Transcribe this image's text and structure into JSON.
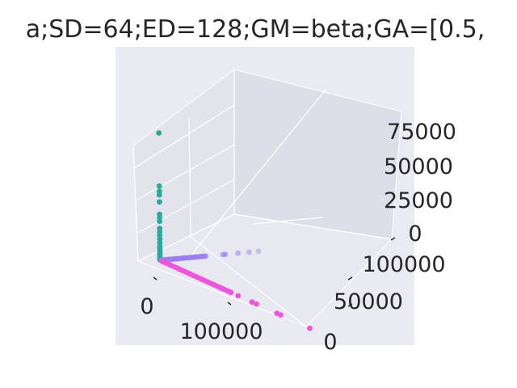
{
  "chart_data": {
    "type": "scatter",
    "title": "a;SD=64;ED=128;GM=beta;GA=[0.5,",
    "xlabel": "",
    "ylabel": "",
    "zlabel": "",
    "grid": true,
    "projection": "3d",
    "x_ticks": [
      "0",
      "100000"
    ],
    "y_ticks": [
      "0",
      "50000",
      "100000"
    ],
    "z_ticks": [
      "0",
      "25000",
      "50000",
      "75000"
    ],
    "xlim": [
      -20000,
      220000
    ],
    "ylim": [
      -10000,
      130000
    ],
    "zlim": [
      0,
      85000
    ],
    "series": [
      {
        "color": "#2ca89a",
        "points": [
          [
            0,
            0,
            72000
          ],
          [
            0,
            0,
            42000
          ],
          [
            0,
            0,
            39000
          ],
          [
            0,
            0,
            37000
          ],
          [
            0,
            0,
            33000
          ],
          [
            0,
            0,
            26000
          ],
          [
            0,
            0,
            24000
          ],
          [
            0,
            0,
            22000
          ],
          [
            0,
            0,
            18000
          ],
          [
            0,
            0,
            16000
          ],
          [
            0,
            0,
            14000
          ],
          [
            0,
            0,
            12000
          ],
          [
            0,
            0,
            10000
          ],
          [
            0,
            0,
            8000
          ],
          [
            0,
            0,
            6500
          ],
          [
            0,
            0,
            5000
          ],
          [
            0,
            0,
            4000
          ],
          [
            0,
            0,
            3000
          ],
          [
            0,
            0,
            2000
          ],
          [
            0,
            0,
            1000
          ],
          [
            0,
            0,
            300
          ]
        ]
      },
      {
        "color": "#9b7cec",
        "points": [
          [
            0,
            125000,
            0
          ],
          [
            0,
            113000,
            0
          ],
          [
            0,
            99000,
            0
          ],
          [
            0,
            83000,
            0
          ],
          [
            0,
            80000,
            0
          ],
          [
            0,
            58000,
            0
          ],
          [
            0,
            56000,
            0
          ],
          [
            0,
            54000,
            0
          ],
          [
            0,
            52000,
            0
          ],
          [
            0,
            50000,
            0
          ],
          [
            0,
            47000,
            0
          ],
          [
            0,
            45000,
            0
          ],
          [
            0,
            42000,
            0
          ],
          [
            0,
            40000,
            0
          ],
          [
            0,
            38000,
            0
          ],
          [
            0,
            35000,
            0
          ],
          [
            0,
            32000,
            0
          ],
          [
            0,
            30000,
            0
          ],
          [
            0,
            28000,
            0
          ],
          [
            0,
            25000,
            0
          ],
          [
            0,
            22000,
            0
          ],
          [
            0,
            20000,
            0
          ],
          [
            0,
            18000,
            0
          ],
          [
            0,
            15000,
            0
          ],
          [
            0,
            12000,
            0
          ],
          [
            0,
            10000,
            0
          ],
          [
            0,
            8000,
            0
          ],
          [
            0,
            6000,
            0
          ],
          [
            0,
            4000,
            0
          ],
          [
            0,
            2000,
            0
          ]
        ]
      },
      {
        "color": "#ee55dd",
        "points": [
          [
            205000,
            0,
            0
          ],
          [
            165000,
            0,
            0
          ],
          [
            160000,
            0,
            0
          ],
          [
            132000,
            0,
            0
          ],
          [
            126000,
            0,
            0
          ],
          [
            107000,
            0,
            0
          ],
          [
            97000,
            0,
            0
          ],
          [
            95000,
            0,
            0
          ],
          [
            92000,
            0,
            0
          ],
          [
            88000,
            0,
            0
          ],
          [
            85000,
            0,
            0
          ],
          [
            82000,
            0,
            0
          ],
          [
            78000,
            0,
            0
          ],
          [
            74000,
            0,
            0
          ],
          [
            70000,
            0,
            0
          ],
          [
            66000,
            0,
            0
          ],
          [
            62000,
            0,
            0
          ],
          [
            58000,
            0,
            0
          ],
          [
            54000,
            0,
            0
          ],
          [
            50000,
            0,
            0
          ],
          [
            46000,
            0,
            0
          ],
          [
            42000,
            0,
            0
          ],
          [
            38000,
            0,
            0
          ],
          [
            34000,
            0,
            0
          ],
          [
            30000,
            0,
            0
          ],
          [
            26000,
            0,
            0
          ],
          [
            22000,
            0,
            0
          ],
          [
            18000,
            0,
            0
          ],
          [
            14000,
            0,
            0
          ],
          [
            10000,
            0,
            0
          ],
          [
            6000,
            0,
            0
          ],
          [
            3000,
            0,
            0
          ]
        ]
      }
    ]
  }
}
